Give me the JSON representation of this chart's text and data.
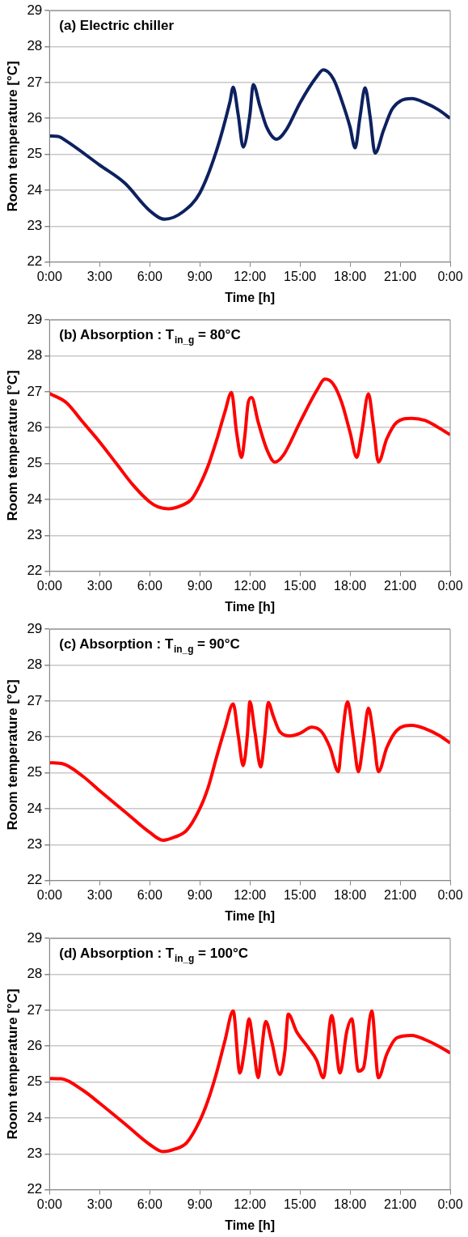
{
  "chart_data": [
    {
      "type": "line",
      "title": "(a) Electric chiller",
      "xlabel": "Time [h]",
      "ylabel": "Room temperature [°C]",
      "xlim": [
        0,
        24
      ],
      "ylim": [
        22,
        29
      ],
      "grid": "y",
      "xticks": [
        {
          "value": 0,
          "label": "0:00"
        },
        {
          "value": 3,
          "label": "3:00"
        },
        {
          "value": 6,
          "label": "6:00"
        },
        {
          "value": 9,
          "label": "9:00"
        },
        {
          "value": 12,
          "label": "12:00"
        },
        {
          "value": 15,
          "label": "15:00"
        },
        {
          "value": 18,
          "label": "18:00"
        },
        {
          "value": 21,
          "label": "21:00"
        },
        {
          "value": 24,
          "label": "0:00"
        }
      ],
      "yticks": [
        22,
        23,
        24,
        25,
        26,
        27,
        28,
        29
      ],
      "x": [
        0,
        0.5,
        1,
        3,
        4.5,
        6,
        6.9,
        8,
        9,
        10,
        10.8,
        11,
        11.3,
        11.6,
        12,
        12.2,
        12.6,
        13,
        13.6,
        14.2,
        15,
        16,
        16.4,
        17,
        17.5,
        18,
        18.3,
        18.6,
        18.9,
        19.2,
        19.5,
        20,
        20.5,
        21,
        21.7,
        22.5,
        23.3,
        24
      ],
      "series": [
        {
          "color": "#0d2160",
          "values": [
            25.51,
            25.5,
            25.37,
            24.7,
            24.2,
            23.43,
            23.19,
            23.4,
            23.92,
            25.1,
            26.45,
            26.87,
            26.1,
            25.2,
            26.1,
            26.94,
            26.34,
            25.76,
            25.42,
            25.7,
            26.43,
            27.16,
            27.35,
            27.1,
            26.5,
            25.76,
            25.18,
            26.05,
            26.85,
            26.05,
            25.03,
            25.66,
            26.24,
            26.48,
            26.55,
            26.43,
            26.24,
            26.0
          ]
        }
      ]
    },
    {
      "type": "line",
      "title": "(b) Absorption : T$_{in_g}$ = 80°C",
      "xlabel": "Time [h]",
      "ylabel": "Room temperature [°C]",
      "xlim": [
        0,
        24
      ],
      "ylim": [
        22,
        29
      ],
      "grid": "y",
      "xticks": [
        {
          "value": 0,
          "label": "0:00"
        },
        {
          "value": 3,
          "label": "3:00"
        },
        {
          "value": 6,
          "label": "6:00"
        },
        {
          "value": 9,
          "label": "9:00"
        },
        {
          "value": 12,
          "label": "12:00"
        },
        {
          "value": 15,
          "label": "15:00"
        },
        {
          "value": 18,
          "label": "18:00"
        },
        {
          "value": 21,
          "label": "21:00"
        },
        {
          "value": 24,
          "label": "0:00"
        }
      ],
      "yticks": [
        22,
        23,
        24,
        25,
        26,
        27,
        28,
        29
      ],
      "x": [
        0,
        1,
        2,
        3,
        4,
        5,
        6,
        6.5,
        7.1,
        8,
        8.5,
        9,
        9.5,
        10,
        10.5,
        10.9,
        11.2,
        11.5,
        11.7,
        11.9,
        12.1,
        12.5,
        13,
        13.5,
        14,
        15,
        16,
        16.5,
        17,
        17.5,
        18,
        18.4,
        18.7,
        19.1,
        19.4,
        19.7,
        20.2,
        20.8,
        21.7,
        22.5,
        23.3,
        24
      ],
      "series": [
        {
          "color": "#ff0000",
          "values": [
            26.95,
            26.7,
            26.15,
            25.6,
            25.0,
            24.4,
            23.93,
            23.79,
            23.74,
            23.85,
            24.0,
            24.4,
            24.94,
            25.64,
            26.43,
            26.98,
            25.87,
            25.17,
            25.78,
            26.7,
            26.84,
            26.15,
            25.41,
            25.04,
            25.23,
            26.15,
            27.03,
            27.35,
            27.21,
            26.7,
            25.87,
            25.17,
            25.87,
            26.94,
            26.06,
            25.04,
            25.69,
            26.15,
            26.26,
            26.2,
            26.0,
            25.8
          ]
        }
      ]
    },
    {
      "type": "line",
      "title": "(c) Absorption : T$_{in_g}$ = 90°C",
      "xlabel": "Time [h]",
      "ylabel": "Room temperature [°C]",
      "xlim": [
        0,
        24
      ],
      "ylim": [
        22,
        29
      ],
      "grid": "y",
      "xticks": [
        {
          "value": 0,
          "label": "0:00"
        },
        {
          "value": 3,
          "label": "3:00"
        },
        {
          "value": 6,
          "label": "6:00"
        },
        {
          "value": 9,
          "label": "9:00"
        },
        {
          "value": 12,
          "label": "12:00"
        },
        {
          "value": 15,
          "label": "15:00"
        },
        {
          "value": 18,
          "label": "18:00"
        },
        {
          "value": 21,
          "label": "21:00"
        },
        {
          "value": 24,
          "label": "0:00"
        }
      ],
      "yticks": [
        22,
        23,
        24,
        25,
        26,
        27,
        28,
        29
      ],
      "x": [
        0,
        0.8,
        2,
        3,
        4.5,
        6,
        6.8,
        7.5,
        8.2,
        9,
        9.5,
        10,
        10.5,
        11,
        11.3,
        11.6,
        11.85,
        12,
        12.3,
        12.65,
        12.9,
        13.1,
        13.4,
        13.8,
        14.4,
        15,
        15.7,
        16.3,
        16.8,
        17.3,
        17.5,
        17.85,
        18.2,
        18.5,
        18.8,
        19.1,
        19.4,
        19.7,
        20.2,
        20.8,
        21.7,
        22.5,
        23.3,
        24
      ],
      "series": [
        {
          "color": "#ff0000",
          "values": [
            25.28,
            25.25,
            24.9,
            24.5,
            23.92,
            23.34,
            23.12,
            23.21,
            23.39,
            24.0,
            24.59,
            25.43,
            26.23,
            26.92,
            26.05,
            25.2,
            26.05,
            26.98,
            26.14,
            25.16,
            26.05,
            26.96,
            26.58,
            26.14,
            26.03,
            26.1,
            26.27,
            26.14,
            25.7,
            25.03,
            25.87,
            26.98,
            25.96,
            25.03,
            25.87,
            26.8,
            26.05,
            25.03,
            25.7,
            26.18,
            26.32,
            26.23,
            26.05,
            25.83
          ]
        }
      ]
    },
    {
      "type": "line",
      "title": "(d) Absorption : T$_{in_g}$ = 100°C",
      "xlabel": "Time [h]",
      "ylabel": "Room temperature [°C]",
      "xlim": [
        0,
        24
      ],
      "ylim": [
        22,
        29
      ],
      "grid": "y",
      "xticks": [
        {
          "value": 0,
          "label": "0:00"
        },
        {
          "value": 3,
          "label": "3:00"
        },
        {
          "value": 6,
          "label": "6:00"
        },
        {
          "value": 9,
          "label": "9:00"
        },
        {
          "value": 12,
          "label": "12:00"
        },
        {
          "value": 15,
          "label": "15:00"
        },
        {
          "value": 18,
          "label": "18:00"
        },
        {
          "value": 21,
          "label": "21:00"
        },
        {
          "value": 24,
          "label": "0:00"
        }
      ],
      "yticks": [
        22,
        23,
        24,
        25,
        26,
        27,
        28,
        29
      ],
      "x": [
        0,
        0.7,
        2,
        3,
        4.5,
        6,
        6.8,
        7.5,
        8.2,
        9,
        9.5,
        10,
        10.5,
        11,
        11.4,
        11.7,
        11.95,
        12.2,
        12.5,
        12.7,
        12.95,
        13.3,
        13.8,
        14.1,
        14.3,
        14.8,
        15.5,
        16,
        16.4,
        16.9,
        17.4,
        17.8,
        18.1,
        18.5,
        18.8,
        19.3,
        19.7,
        20.2,
        20.8,
        21.7,
        22.5,
        23.3,
        24
      ],
      "series": [
        {
          "color": "#ff0000",
          "values": [
            25.1,
            25.09,
            24.77,
            24.41,
            23.84,
            23.26,
            23.06,
            23.13,
            23.3,
            23.92,
            24.5,
            25.25,
            26.14,
            26.98,
            25.25,
            25.96,
            26.76,
            26.05,
            25.12,
            25.87,
            26.69,
            26.14,
            25.21,
            25.87,
            26.89,
            26.4,
            25.96,
            25.61,
            25.12,
            26.85,
            25.25,
            26.4,
            26.76,
            25.3,
            25.39,
            26.98,
            25.12,
            25.78,
            26.23,
            26.3,
            26.18,
            26.0,
            25.81
          ]
        }
      ]
    }
  ]
}
